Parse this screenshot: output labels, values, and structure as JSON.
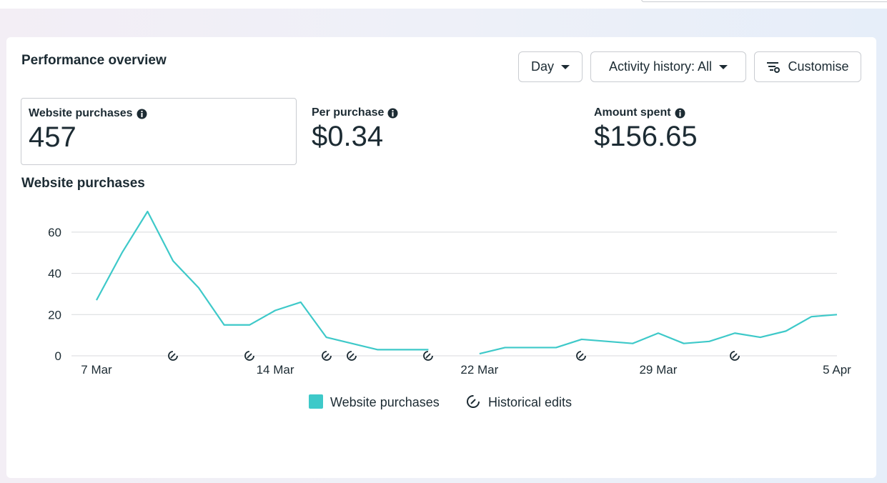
{
  "header": {
    "title": "Performance overview",
    "buttons": [
      "Day",
      "Activity history: All",
      "Customise"
    ]
  },
  "metrics": [
    {
      "label": "Website purchases",
      "value": "457"
    },
    {
      "label": "Per purchase",
      "value": "$0.34"
    },
    {
      "label": "Amount spent",
      "value": "$156.65"
    }
  ],
  "chart_data": {
    "type": "line",
    "title": "Website purchases",
    "categories": [
      "7 Mar",
      null,
      null,
      null,
      null,
      null,
      null,
      "14 Mar",
      null,
      null,
      null,
      null,
      null,
      null,
      null,
      "22 Mar",
      null,
      null,
      null,
      null,
      null,
      null,
      "29 Mar",
      null,
      null,
      null,
      null,
      null,
      null,
      "5 Apr"
    ],
    "series": [
      {
        "name": "Website purchases",
        "color": "#3ec9c9",
        "values": [
          27,
          50,
          70,
          46,
          33,
          15,
          15,
          22,
          26,
          9,
          6,
          3,
          3,
          3,
          null,
          1,
          4,
          4,
          4,
          8,
          7,
          6,
          11,
          6,
          7,
          11,
          9,
          12,
          19,
          20
        ]
      }
    ],
    "ylim": [
      0,
      70
    ],
    "yticks": [
      0,
      20,
      40,
      60
    ],
    "grid": true,
    "legend_extra": "Historical edits"
  }
}
